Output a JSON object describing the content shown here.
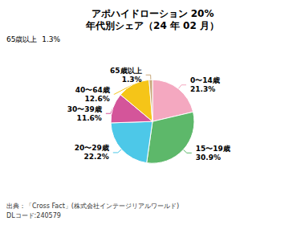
{
  "chart_data": {
    "type": "pie",
    "title": "アポハイドローション 20%\n年代別シェア（24 年 02 月）",
    "categories": [
      "0〜14歳",
      "15〜19歳",
      "20〜29歳",
      "30〜39歳",
      "40〜64歳",
      "65歳以上"
    ],
    "values": [
      21.3,
      30.9,
      22.2,
      11.6,
      12.6,
      1.3
    ],
    "value_labels": [
      "21.3%",
      "30.9%",
      "22.2%",
      "11.6%",
      "12.6%",
      "1.3%"
    ],
    "colors": [
      "#F4A8C0",
      "#5DB86A",
      "#4DC8E8",
      "#D4559A",
      "#F5C518",
      "#C8A87A"
    ],
    "data_labels": true,
    "annotations": [
      "65歳以上  1.3%",
      "出典：「Cross Fact」(株式会社インテージリアルワールド)\nDLコード:240579"
    ]
  }
}
